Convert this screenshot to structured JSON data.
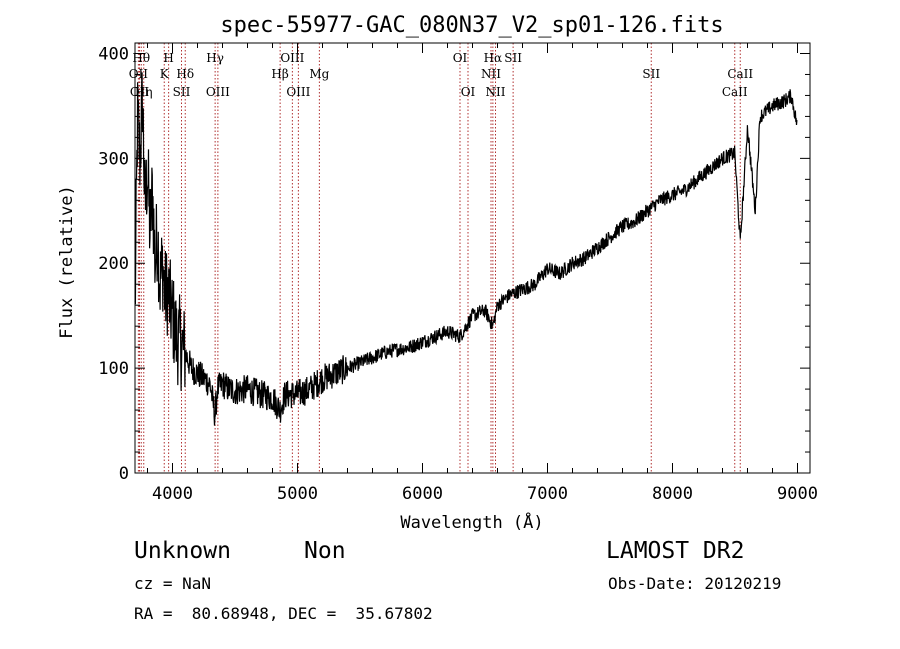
{
  "chart_data": {
    "type": "line",
    "title": "spec-55977-GAC_080N37_V2_sp01-126.fits",
    "xlabel": "Wavelength (Å)",
    "ylabel": "Flux (relative)",
    "xlim": [
      3700,
      9100
    ],
    "ylim": [
      0,
      410
    ],
    "x_ticks": [
      4000,
      5000,
      6000,
      7000,
      8000,
      9000
    ],
    "y_ticks": [
      0,
      100,
      200,
      300,
      400
    ],
    "line_color": "#000000",
    "marker_color": "#b03030",
    "series": [
      {
        "x": [
          3700,
          3720,
          3740,
          3760,
          3780,
          3800,
          3820,
          3840,
          3860,
          3880,
          3900,
          3920,
          3940,
          3960,
          3980,
          4000,
          4030,
          4060,
          4100,
          4150,
          4200,
          4250,
          4300,
          4340,
          4360,
          4400,
          4450,
          4500,
          4600,
          4700,
          4800,
          4860,
          4900,
          5000,
          5100,
          5200,
          5300,
          5400,
          5500,
          5600,
          5700,
          5800,
          5900,
          6000,
          6100,
          6200,
          6300,
          6400,
          6500,
          6563,
          6600,
          6700,
          6800,
          6900,
          7000,
          7100,
          7200,
          7300,
          7400,
          7500,
          7600,
          7700,
          7800,
          7900,
          8000,
          8100,
          8200,
          8300,
          8400,
          8498,
          8542,
          8600,
          8662,
          8700,
          8800,
          8900,
          8950,
          9000
        ],
        "y": [
          150,
          340,
          300,
          360,
          250,
          290,
          230,
          270,
          200,
          230,
          180,
          200,
          170,
          175,
          160,
          150,
          130,
          125,
          115,
          100,
          95,
          90,
          85,
          55,
          80,
          85,
          80,
          78,
          80,
          75,
          72,
          60,
          75,
          75,
          80,
          90,
          95,
          100,
          105,
          110,
          115,
          118,
          120,
          125,
          130,
          135,
          130,
          150,
          155,
          140,
          160,
          170,
          175,
          180,
          195,
          190,
          200,
          205,
          215,
          225,
          235,
          240,
          250,
          260,
          265,
          270,
          280,
          290,
          300,
          305,
          220,
          330,
          250,
          340,
          350,
          355,
          360,
          330
        ]
      }
    ],
    "line_markers": [
      {
        "wavelength": 3727,
        "label": "OII",
        "row": 1
      },
      {
        "wavelength": 3736,
        "label": "OII",
        "row": 2
      },
      {
        "wavelength": 3750,
        "label": "Hθ",
        "row": 0
      },
      {
        "wavelength": 3770,
        "label": "Hη",
        "row": 2
      },
      {
        "wavelength": 3934,
        "label": "K",
        "row": 1
      },
      {
        "wavelength": 3969,
        "label": "H",
        "row": 0
      },
      {
        "wavelength": 4072,
        "label": "SII",
        "row": 2
      },
      {
        "wavelength": 4102,
        "label": "Hδ",
        "row": 1
      },
      {
        "wavelength": 4341,
        "label": "Hγ",
        "row": 0
      },
      {
        "wavelength": 4363,
        "label": "OIII",
        "row": 2
      },
      {
        "wavelength": 4861,
        "label": "Hβ",
        "row": 1
      },
      {
        "wavelength": 4959,
        "label": "OIII",
        "row": 0
      },
      {
        "wavelength": 5007,
        "label": "OIII",
        "row": 2
      },
      {
        "wavelength": 5175,
        "label": "Mg",
        "row": 1
      },
      {
        "wavelength": 6300,
        "label": "OI",
        "row": 0
      },
      {
        "wavelength": 6364,
        "label": "OI",
        "row": 2
      },
      {
        "wavelength": 6548,
        "label": "NII",
        "row": 1
      },
      {
        "wavelength": 6563,
        "label": "Hα",
        "row": 0
      },
      {
        "wavelength": 6584,
        "label": "NII",
        "row": 2
      },
      {
        "wavelength": 6725,
        "label": "SII",
        "row": 0
      },
      {
        "wavelength": 7830,
        "label": "SII",
        "row": 1
      },
      {
        "wavelength": 8498,
        "label": "CaII",
        "row": 2
      },
      {
        "wavelength": 8542,
        "label": "CaII",
        "row": 1
      }
    ]
  },
  "footer": {
    "object_class": "Unknown",
    "subclass": "Non",
    "survey": "LAMOST DR2",
    "cz": "cz = NaN",
    "obs_date": "Obs-Date: 20120219",
    "coords": "RA =  80.68948, DEC =  35.67802"
  }
}
